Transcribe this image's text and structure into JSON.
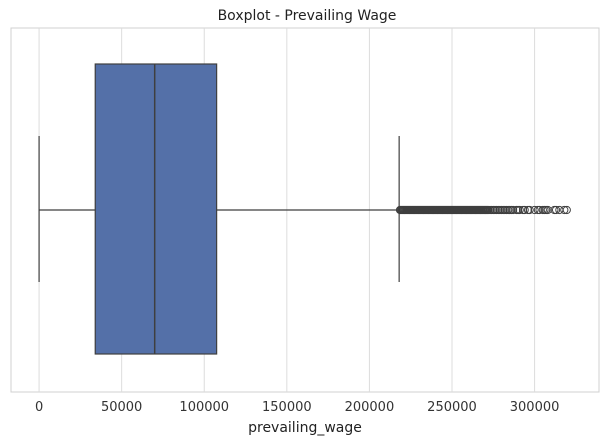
{
  "chart_data": {
    "type": "boxplot",
    "title": "Boxplot - Prevailing Wage",
    "xlabel": "prevailing_wage",
    "ylabel": "",
    "xlim": [
      -17000,
      339000
    ],
    "xticks": [
      0,
      50000,
      100000,
      150000,
      200000,
      250000,
      300000
    ],
    "xtick_labels": [
      "0",
      "50000",
      "100000",
      "150000",
      "200000",
      "250000",
      "300000"
    ],
    "grid": "vertical",
    "box": {
      "whisker_low": 0,
      "q1": 34000,
      "median": 70000,
      "q3": 107500,
      "whisker_high": 218000,
      "color": "#5470a8",
      "edge_color": "#3f3f3f"
    },
    "outliers": [
      218500,
      219000,
      219500,
      220000,
      220500,
      221000,
      221500,
      222000,
      222500,
      223000,
      223500,
      224000,
      224500,
      225000,
      225500,
      226000,
      226500,
      227000,
      227500,
      228000,
      228500,
      229000,
      229500,
      230000,
      230500,
      231000,
      231500,
      232000,
      232500,
      233000,
      233500,
      234000,
      234500,
      235000,
      235500,
      236000,
      236500,
      237000,
      237500,
      238000,
      238500,
      239000,
      239500,
      240000,
      240500,
      241000,
      241500,
      242000,
      242500,
      243000,
      243500,
      244000,
      244500,
      245000,
      245500,
      246000,
      246500,
      247000,
      247500,
      248000,
      248500,
      249000,
      249500,
      250000,
      250500,
      251000,
      251500,
      252000,
      252500,
      253000,
      253500,
      254000,
      254500,
      255000,
      255500,
      256000,
      256500,
      257000,
      257500,
      258000,
      258500,
      259000,
      259500,
      260000,
      260500,
      261000,
      261500,
      262000,
      262500,
      263000,
      263500,
      264000,
      264500,
      265000,
      265500,
      266000,
      266500,
      267000,
      267500,
      268000,
      268500,
      269000,
      269500,
      270000,
      270500,
      271000,
      271500,
      272000,
      273000,
      274000,
      275000,
      276000,
      277000,
      278000,
      279000,
      280000,
      281000,
      282000,
      283000,
      284000,
      285000,
      286000,
      287000,
      289000,
      290000,
      291000,
      293000,
      294000,
      296000,
      297000,
      300000,
      302000,
      303000,
      305000,
      306000,
      307000,
      308000,
      312000,
      313000,
      315000,
      318000,
      319500
    ]
  }
}
